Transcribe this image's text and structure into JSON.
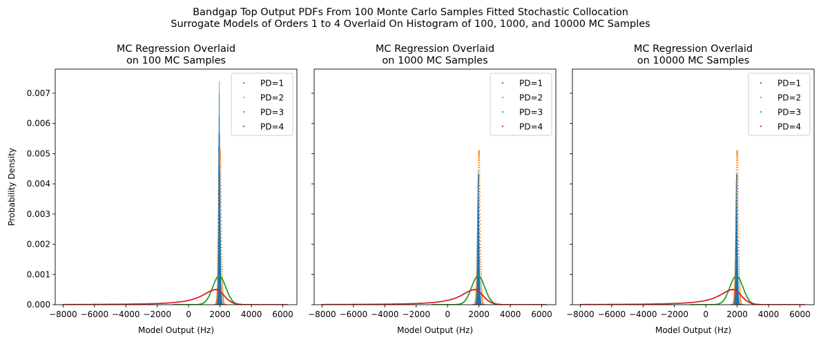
{
  "suptitle": [
    "Bandgap Top Output PDFs From 100 Monte Carlo Samples Fitted Stochastic Collocation",
    "Surrogate Models of Orders 1 to 4 Overlaid On Histogram of 100, 1000, and 10000 MC Samples"
  ],
  "colors": {
    "PD=1": "#1f77b4",
    "PD=2": "#ff7f0e",
    "PD=3": "#2ca02c",
    "PD=4": "#d62728",
    "histogram": "#1f77b4"
  },
  "chart_data": [
    {
      "type": "scatter",
      "title": [
        "MC Regression Overlaid",
        "on 100 MC Samples"
      ],
      "xlabel": "Model Output (Hz)",
      "ylabel": "Probability Density",
      "xlim": [
        -8500,
        6900
      ],
      "ylim": [
        0,
        0.0078
      ],
      "xticks": [
        -8000,
        -6000,
        -4000,
        -2000,
        0,
        2000,
        4000,
        6000
      ],
      "xticklabels": [
        "−8000",
        "−6000",
        "−4000",
        "−2000",
        "0",
        "2000",
        "4000",
        "6000"
      ],
      "yticks": [
        0,
        0.001,
        0.002,
        0.003,
        0.004,
        0.005,
        0.006,
        0.007
      ],
      "yticklabels": [
        "0.000",
        "0.001",
        "0.002",
        "0.003",
        "0.004",
        "0.005",
        "0.006",
        "0.007"
      ],
      "legend": {
        "placement": "upper right",
        "entries": [
          "PD=1",
          "PD=2",
          "PD=3",
          "PD=4"
        ]
      },
      "histogram": {
        "center": 1950,
        "max_density": 0.00745,
        "samples": 100
      },
      "series": [
        {
          "name": "PD=1",
          "center": 1980,
          "sigma": 45,
          "peak": 0.0043,
          "xrange": [
            1700,
            2250
          ]
        },
        {
          "name": "PD=2",
          "center": 2000,
          "sigma": 80,
          "peak": 0.0051,
          "xrange": [
            1600,
            2400
          ]
        },
        {
          "name": "PD=3",
          "center": 1950,
          "sigma": 420,
          "peak": 0.00095,
          "xrange": [
            -1000,
            4100
          ]
        },
        {
          "name": "PD=4",
          "center": 1750,
          "sigma": 900,
          "peak": 0.0005,
          "xrange": [
            -8000,
            6300
          ]
        }
      ]
    },
    {
      "type": "scatter",
      "title": [
        "MC Regression Overlaid",
        "on 1000 MC Samples"
      ],
      "xlabel": "Model Output (Hz)",
      "ylabel": "",
      "xlim": [
        -8500,
        6900
      ],
      "ylim": [
        0,
        0.0078
      ],
      "xticks": [
        -8000,
        -6000,
        -4000,
        -2000,
        0,
        2000,
        4000,
        6000
      ],
      "xticklabels": [
        "−8000",
        "−6000",
        "−4000",
        "−2000",
        "0",
        "2000",
        "4000",
        "6000"
      ],
      "yticks": [
        0,
        0.001,
        0.002,
        0.003,
        0.004,
        0.005,
        0.006,
        0.007
      ],
      "legend": {
        "placement": "upper right",
        "entries": [
          "PD=1",
          "PD=2",
          "PD=3",
          "PD=4"
        ]
      },
      "histogram": {
        "center": 1950,
        "max_density": 0.0045,
        "samples": 1000
      },
      "series": [
        {
          "name": "PD=1",
          "center": 1980,
          "sigma": 45,
          "peak": 0.0043,
          "xrange": [
            1700,
            2250
          ]
        },
        {
          "name": "PD=2",
          "center": 2000,
          "sigma": 80,
          "peak": 0.0051,
          "xrange": [
            1600,
            2400
          ]
        },
        {
          "name": "PD=3",
          "center": 1950,
          "sigma": 420,
          "peak": 0.00095,
          "xrange": [
            -1000,
            4100
          ]
        },
        {
          "name": "PD=4",
          "center": 1750,
          "sigma": 900,
          "peak": 0.0005,
          "xrange": [
            -8000,
            6300
          ]
        }
      ]
    },
    {
      "type": "scatter",
      "title": [
        "MC Regression Overlaid",
        "on 10000 MC Samples"
      ],
      "xlabel": "Model Output (Hz)",
      "ylabel": "",
      "xlim": [
        -8500,
        6900
      ],
      "ylim": [
        0,
        0.0078
      ],
      "xticks": [
        -8000,
        -6000,
        -4000,
        -2000,
        0,
        2000,
        4000,
        6000
      ],
      "xticklabels": [
        "−8000",
        "−6000",
        "−4000",
        "−2000",
        "0",
        "2000",
        "4000",
        "6000"
      ],
      "yticks": [
        0,
        0.001,
        0.002,
        0.003,
        0.004,
        0.005,
        0.006,
        0.007
      ],
      "legend": {
        "placement": "upper right",
        "entries": [
          "PD=1",
          "PD=2",
          "PD=3",
          "PD=4"
        ]
      },
      "histogram": {
        "center": 1950,
        "max_density": 0.0044,
        "samples": 10000
      },
      "series": [
        {
          "name": "PD=1",
          "center": 1980,
          "sigma": 45,
          "peak": 0.0043,
          "xrange": [
            1700,
            2250
          ]
        },
        {
          "name": "PD=2",
          "center": 2000,
          "sigma": 80,
          "peak": 0.0051,
          "xrange": [
            1600,
            2400
          ]
        },
        {
          "name": "PD=3",
          "center": 1950,
          "sigma": 420,
          "peak": 0.00095,
          "xrange": [
            -1000,
            4100
          ]
        },
        {
          "name": "PD=4",
          "center": 1750,
          "sigma": 900,
          "peak": 0.0005,
          "xrange": [
            -8000,
            6300
          ]
        }
      ]
    }
  ]
}
